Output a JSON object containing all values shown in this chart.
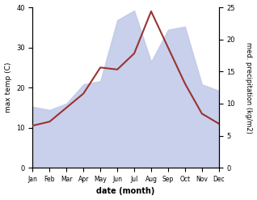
{
  "months": [
    "Jan",
    "Feb",
    "Mar",
    "Apr",
    "May",
    "Jun",
    "Jul",
    "Aug",
    "Sep",
    "Oct",
    "Nov",
    "Dec"
  ],
  "max_temp": [
    10.5,
    11.5,
    15.0,
    18.5,
    25.0,
    24.5,
    28.5,
    39.0,
    30.0,
    21.0,
    13.5,
    11.0
  ],
  "precipitation": [
    9.5,
    9.0,
    10.0,
    13.0,
    13.5,
    23.0,
    24.5,
    16.5,
    21.5,
    22.0,
    13.0,
    12.0
  ],
  "temp_color": "#993333",
  "precip_fill_color": "#c0c8e8",
  "precip_fill_alpha": 0.85,
  "temp_ylim": [
    0,
    40
  ],
  "precip_ylim": [
    0,
    25
  ],
  "temp_yticks": [
    0,
    10,
    20,
    30,
    40
  ],
  "precip_yticks": [
    0,
    5,
    10,
    15,
    20,
    25
  ],
  "xlabel": "date (month)",
  "ylabel_left": "max temp (C)",
  "ylabel_right": "med. precipitation (kg/m2)",
  "background_color": "#ffffff"
}
